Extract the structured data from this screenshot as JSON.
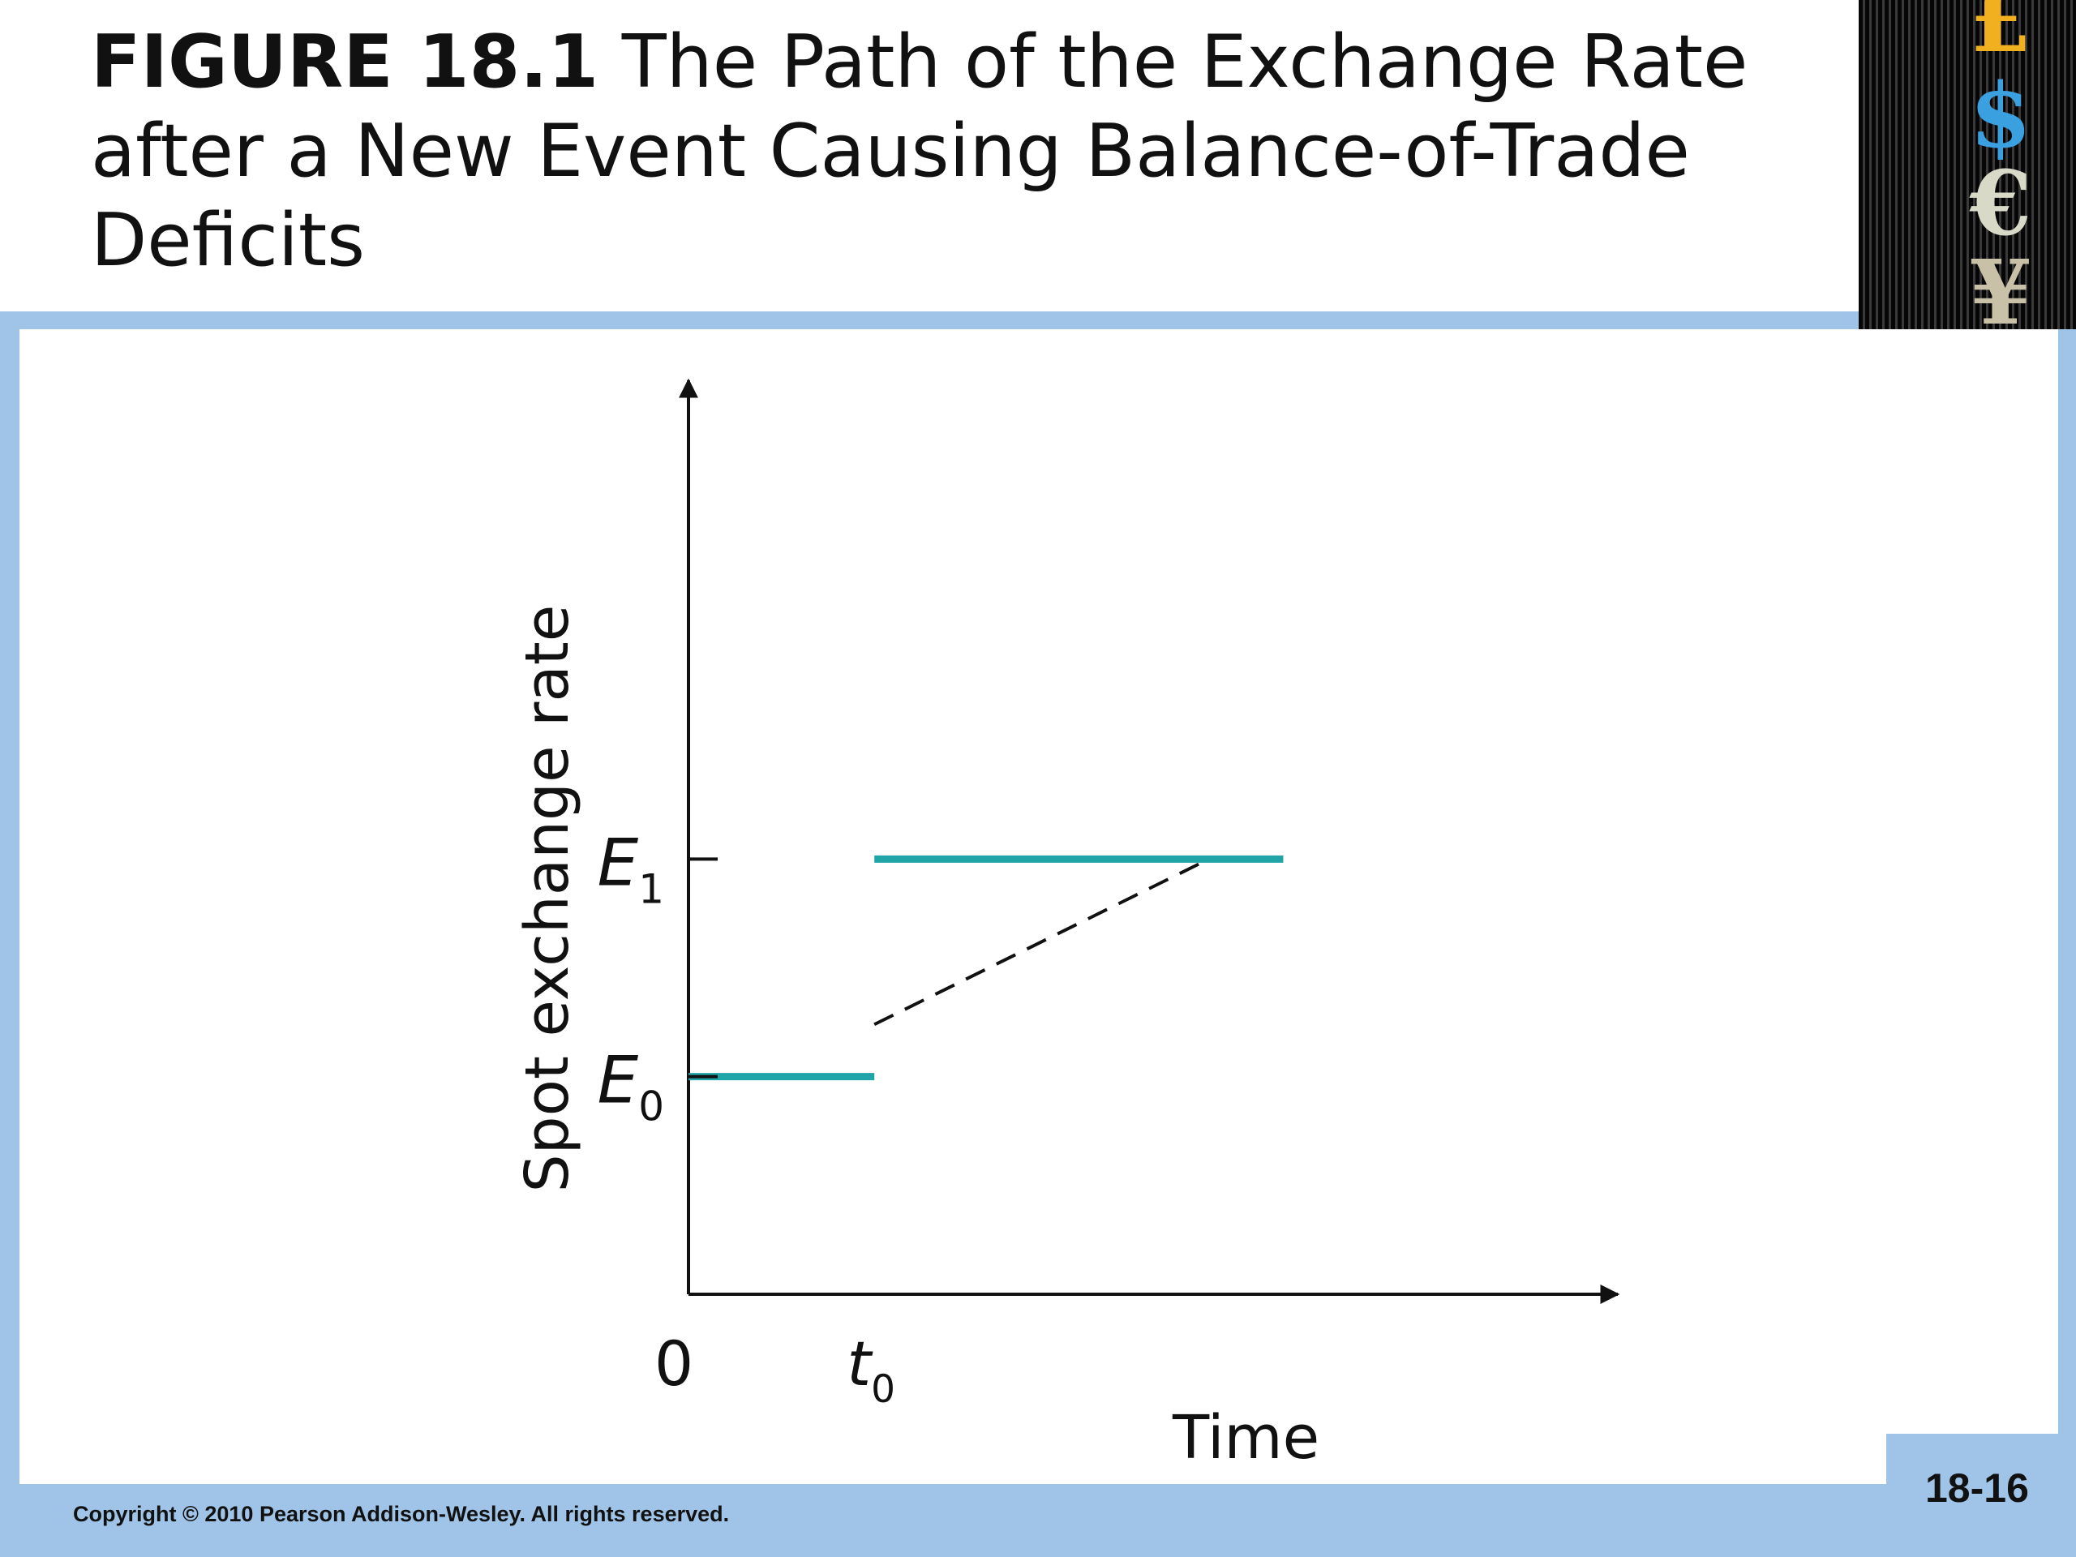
{
  "header": {
    "figure_label": "FIGURE 18.1",
    "title": "The Path of the Exchange Rate after a New Event Causing Balance-of-Trade Deficits"
  },
  "currency_symbols": [
    "£",
    "$",
    "€",
    "¥"
  ],
  "chart_data": {
    "type": "line",
    "title": "The Path of the Exchange Rate after a New Event Causing Balance-of-Trade Deficits",
    "xlabel": "Time",
    "ylabel": "Spot exchange rate",
    "x_ticks": [
      {
        "label": "0",
        "value": 0
      },
      {
        "label": "t",
        "sub": "0",
        "value": 1
      }
    ],
    "y_ticks": [
      {
        "label": "E",
        "sub": "1",
        "value": 2
      },
      {
        "label": "E",
        "sub": "0",
        "value": 1
      }
    ],
    "xlim": [
      0,
      5
    ],
    "ylim": [
      0,
      4.2
    ],
    "grid": false,
    "series": [
      {
        "style": "solid",
        "color": "#1fa5a8",
        "x": [
          0,
          1
        ],
        "y": [
          1,
          1
        ]
      },
      {
        "style": "solid",
        "color": "#1fa5a8",
        "x": [
          1,
          3.2
        ],
        "y": [
          2,
          2
        ]
      },
      {
        "style": "dashed",
        "color": "#111111",
        "x": [
          1,
          2.8
        ],
        "y": [
          1.24,
          2
        ]
      }
    ]
  },
  "footer": {
    "copyright": "Copyright © 2010 Pearson Addison-Wesley. All rights reserved.",
    "page_number": "18-16"
  }
}
